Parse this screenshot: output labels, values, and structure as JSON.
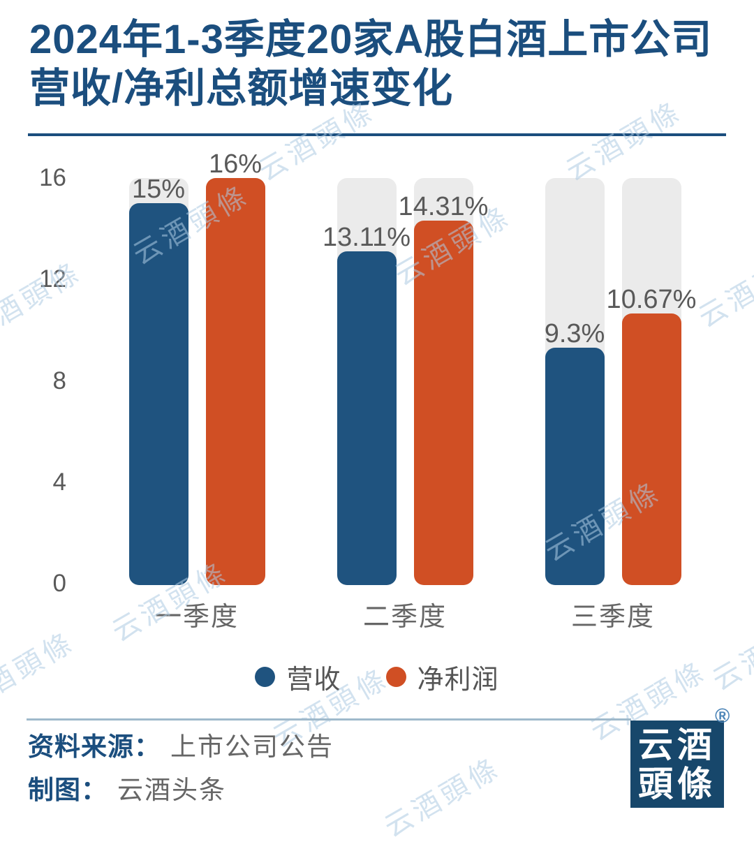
{
  "title": {
    "line1": "2024年1-3季度20家A股白酒上市公司",
    "line2": "营收/净利总额增速变化"
  },
  "chart_data": {
    "type": "bar",
    "categories": [
      "一季度",
      "二季度",
      "三季度"
    ],
    "series": [
      {
        "name": "营收",
        "color": "#1F537F",
        "values": [
          15,
          13.11,
          9.3
        ],
        "labels": [
          "15%",
          "13.11%",
          "9.3%"
        ]
      },
      {
        "name": "净利润",
        "color": "#D04F24",
        "values": [
          16,
          14.31,
          10.67
        ],
        "labels": [
          "16%",
          "14.31%",
          "10.67%"
        ]
      }
    ],
    "ylim": [
      0,
      16
    ],
    "yticks": [
      16,
      12,
      8,
      4,
      0
    ],
    "track_max": 16,
    "grid": false,
    "legend_position": "bottom",
    "track_color": "#EBEBEB",
    "label_color": "#595959"
  },
  "footer": {
    "source_label": "资料来源：",
    "source_value": "上市公司公告",
    "credit_label": "制图：",
    "credit_value": "云酒头条"
  },
  "logo": {
    "line1": "云酒",
    "line2": "頭條",
    "registered": "®"
  },
  "watermark": {
    "text": "云酒頭條"
  },
  "colors": {
    "title_navy": "#1B4E7E",
    "bar_blue": "#1F537F",
    "bar_orange": "#D04F24",
    "track_gray": "#EBEBEB",
    "text_gray": "#595959",
    "divider_top": "#1B4E7E",
    "divider_bottom": "#9FB9CB",
    "logo_bg": "#17476B",
    "watermark_blue": "#AECBE3"
  }
}
